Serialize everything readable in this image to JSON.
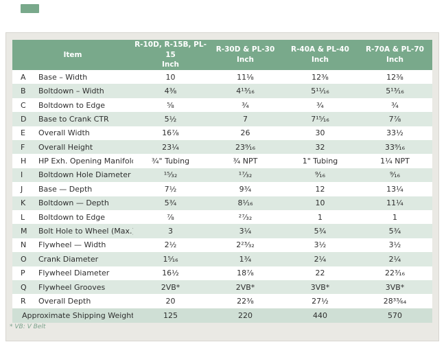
{
  "page": {
    "accent_green": "#79a98b",
    "row_tint": "#dde9e1",
    "weight_row_bg": "#cfdfd5",
    "panel_bg": "#eae9e4",
    "footnote": "* VB: V Belt"
  },
  "table": {
    "columns": [
      {
        "label": "Item",
        "sub": ""
      },
      {
        "label": "R-10D, R-15B, PL-15",
        "sub": "Inch"
      },
      {
        "label": "R-30D & PL-30",
        "sub": "Inch"
      },
      {
        "label": "R-40A & PL-40",
        "sub": "Inch"
      },
      {
        "label": "R-70A & PL-70",
        "sub": "Inch"
      }
    ],
    "rows": [
      {
        "letter": "A",
        "item": "Base – Width",
        "values": [
          "10",
          "11⅛",
          "12⅜",
          "12⅜"
        ]
      },
      {
        "letter": "B",
        "item": "Boltdown – Width",
        "values": [
          "4⅜",
          "4¹³⁄₁₆",
          "5¹¹⁄₁₆",
          "5¹³⁄₁₆"
        ]
      },
      {
        "letter": "C",
        "item": "Boltdown to Edge",
        "values": [
          "⅝",
          "¾",
          "¾",
          "¾"
        ]
      },
      {
        "letter": "D",
        "item": "Base to Crank CTR",
        "values": [
          "5½",
          "7",
          "7¹⁵⁄₁₆",
          "7⅞"
        ]
      },
      {
        "letter": "E",
        "item": "Overall Width",
        "values": [
          "16⅞",
          "26",
          "30",
          "33½"
        ]
      },
      {
        "letter": "F",
        "item": "Overall Height",
        "values": [
          "23¼",
          "23⁹⁄₁₆",
          "32",
          "33⁹⁄₁₆"
        ]
      },
      {
        "letter": "H",
        "item": "HP Exh. Opening Manifold",
        "values": [
          "¾\" Tubing",
          "¾ NPT",
          "1\" Tubing",
          "1¼ NPT"
        ]
      },
      {
        "letter": "I",
        "item": "Boltdown Hole Diameter",
        "values": [
          "¹⁵⁄₃₂",
          "¹⁷⁄₃₂",
          "⁹⁄₁₆",
          "⁹⁄₁₆"
        ]
      },
      {
        "letter": "J",
        "item": "Base — Depth",
        "values": [
          "7½",
          "9¾",
          "12",
          "13¼"
        ]
      },
      {
        "letter": "K",
        "item": "Boltdown — Depth",
        "values": [
          "5¾",
          "8¹⁄₁₆",
          "10",
          "11¼"
        ]
      },
      {
        "letter": "L",
        "item": "Boltdown to Edge",
        "values": [
          "⅞",
          "²⁷⁄₃₂",
          "1",
          "1"
        ]
      },
      {
        "letter": "M",
        "item": "Bolt Hole to Wheel (Max.)",
        "values": [
          "3",
          "3¼",
          "5¾",
          "5¾"
        ]
      },
      {
        "letter": "N",
        "item": "Flywheel — Width",
        "values": [
          "2½",
          "2²³⁄₃₂",
          "3½",
          "3½"
        ]
      },
      {
        "letter": "O",
        "item": "Crank Diameter",
        "values": [
          "1⁵⁄₁₆",
          "1¾",
          "2¼",
          "2¼"
        ]
      },
      {
        "letter": "P",
        "item": "Flywheel Diameter",
        "values": [
          "16½",
          "18⅞",
          "22",
          "22³⁄₁₆"
        ]
      },
      {
        "letter": "Q",
        "item": "Flywheel Grooves",
        "values": [
          "2VB*",
          "2VB*",
          "3VB*",
          "3VB*"
        ]
      },
      {
        "letter": "R",
        "item": "Overall Depth",
        "values": [
          "20",
          "22⅜",
          "27½",
          "28³³⁄₆₄"
        ]
      }
    ],
    "footer_row": {
      "label": "Approximate Shipping Weight (lbs.)",
      "values": [
        "125",
        "220",
        "440",
        "570"
      ]
    }
  }
}
